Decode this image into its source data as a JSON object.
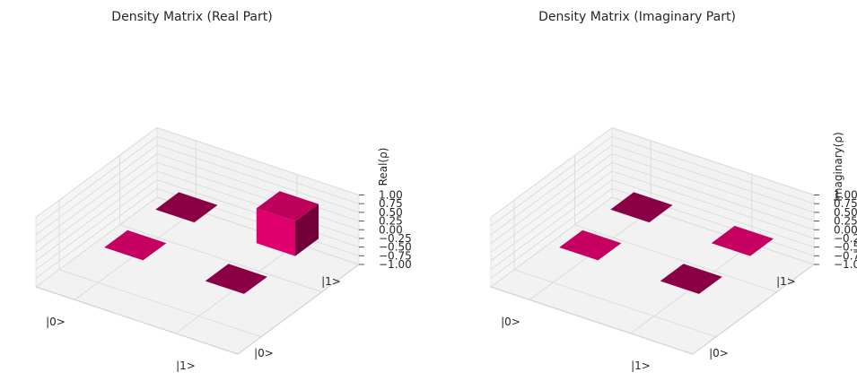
{
  "chart_data": [
    {
      "type": "bar3d",
      "title": "Density Matrix (Real Part)",
      "zlabel": "Real(ρ)",
      "zlim": [
        -1.0,
        1.0
      ],
      "zticks": [
        "1.00",
        "0.75",
        "0.50",
        "0.25",
        "0.00",
        "−0.25",
        "−0.50",
        "−0.75",
        "−1.00"
      ],
      "row_labels": [
        "|0>",
        "|1>"
      ],
      "col_labels": [
        "|0>",
        "|1>"
      ],
      "values": [
        [
          0.0,
          0.0
        ],
        [
          0.0,
          1.0
        ]
      ],
      "bar_color": "#e0006d",
      "grid": true
    },
    {
      "type": "bar3d",
      "title": "Density Matrix (Imaginary Part)",
      "zlabel": "Imaginary(ρ)",
      "zlim": [
        -1.0,
        1.0
      ],
      "zticks": [
        "1.00",
        "0.75",
        "0.50",
        "0.25",
        "0.00",
        "−0.25",
        "−0.50",
        "−0.75",
        "−1.00"
      ],
      "row_labels": [
        "|0>",
        "|1>"
      ],
      "col_labels": [
        "|0>",
        "|1>"
      ],
      "values": [
        [
          0.0,
          0.0
        ],
        [
          0.0,
          0.0
        ]
      ],
      "bar_color": "#e0006d",
      "grid": true
    }
  ]
}
